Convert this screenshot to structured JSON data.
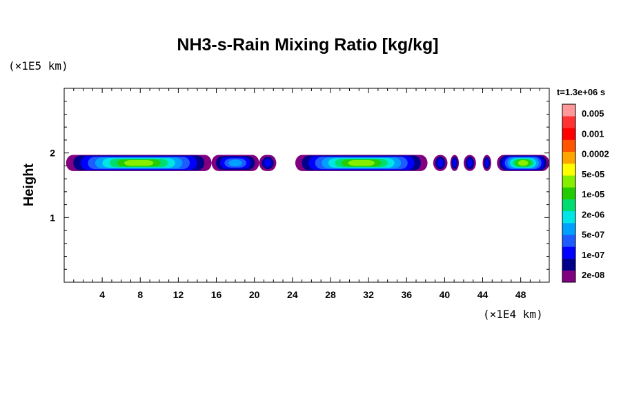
{
  "chart_data": {
    "type": "heatmap",
    "title": "NH3-s-Rain Mixing Ratio [kg/kg]",
    "xlabel": "",
    "ylabel": "Height",
    "x_unit": "(×1E4 km)",
    "y_unit": "(×1E5 km)",
    "time_label": "t=1.3e+06 s",
    "xlim": [
      0,
      51
    ],
    "ylim": [
      0,
      3
    ],
    "x_ticks": [
      "4",
      "8",
      "12",
      "16",
      "20",
      "24",
      "28",
      "32",
      "36",
      "40",
      "44",
      "48"
    ],
    "y_ticks": [
      "1",
      "2"
    ],
    "colorbar": {
      "levels": [
        "0.005",
        "0.001",
        "0.0002",
        "5e-05",
        "1e-05",
        "2e-06",
        "5e-07",
        "1e-07",
        "2e-08"
      ],
      "colors": [
        "#800080",
        "#00008b",
        "#0000ff",
        "#1e5cff",
        "#00a0ff",
        "#00e5e5",
        "#00dd70",
        "#22cc00",
        "#88ee00",
        "#ffff00",
        "#ffa500",
        "#ff5500",
        "#ff0000",
        "#ff3333",
        "#ff9999"
      ]
    },
    "layer": {
      "description_level_max": "5e-05",
      "height_range": [
        1.72,
        1.97
      ],
      "segments": [
        {
          "x_start": 0.2,
          "x_end": 15.5,
          "peak_level": "5e-05"
        },
        {
          "x_start": 15.5,
          "x_end": 20.5,
          "peak_level": "5e-07"
        },
        {
          "x_start": 20.5,
          "x_end": 22.3,
          "peak_level": "1e-07"
        },
        {
          "x_start": 24.3,
          "x_end": 38.2,
          "peak_level": "5e-05"
        },
        {
          "x_start": 38.8,
          "x_end": 40.3,
          "peak_level": "1e-07"
        },
        {
          "x_start": 40.6,
          "x_end": 41.5,
          "peak_level": "1e-07"
        },
        {
          "x_start": 42.0,
          "x_end": 43.3,
          "peak_level": "1e-07"
        },
        {
          "x_start": 44.0,
          "x_end": 44.9,
          "peak_level": "1e-07"
        },
        {
          "x_start": 45.5,
          "x_end": 51.0,
          "peak_level": "5e-05"
        }
      ]
    }
  }
}
